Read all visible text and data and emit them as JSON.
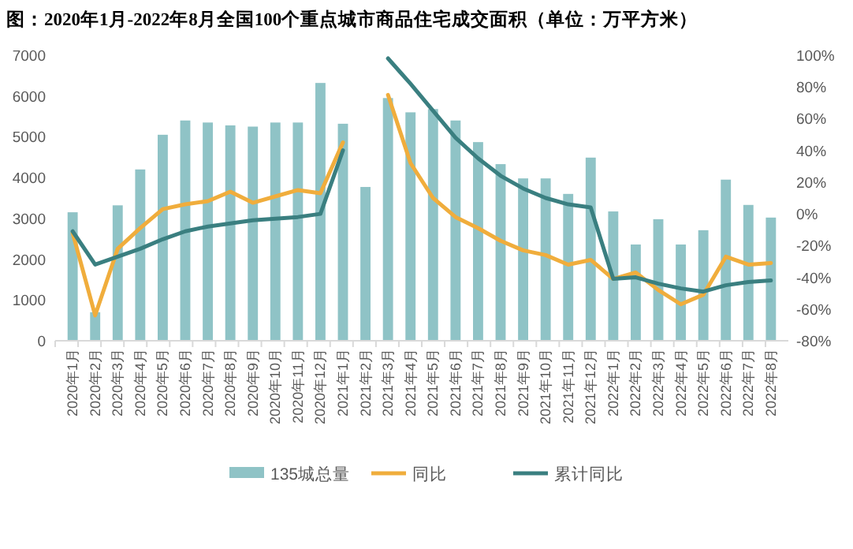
{
  "chart_data": {
    "type": "bar",
    "title": "图：2020年1月-2022年8月全国100个重点城市商品住宅成交面积（单位：万平方米）",
    "categories": [
      "2020年1月",
      "2020年2月",
      "2020年3月",
      "2020年4月",
      "2020年5月",
      "2020年6月",
      "2020年7月",
      "2020年8月",
      "2020年9月",
      "2020年10月",
      "2020年11月",
      "2020年12月",
      "2021年1月",
      "2021年2月",
      "2021年3月",
      "2021年4月",
      "2021年5月",
      "2021年6月",
      "2021年7月",
      "2021年8月",
      "2021年9月",
      "2021年10月",
      "2021年11月",
      "2021年12月",
      "2022年1月",
      "2022年2月",
      "2022年3月",
      "2022年4月",
      "2022年5月",
      "2022年6月",
      "2022年7月",
      "2022年8月"
    ],
    "series": [
      {
        "name": "135城总量",
        "color": "#8fc3c6",
        "values": [
          3150,
          700,
          3320,
          4200,
          5050,
          5400,
          5350,
          5280,
          5250,
          5350,
          5350,
          6320,
          5320,
          3770,
          5950,
          5600,
          5680,
          5400,
          4870,
          4330,
          3980,
          3980,
          3600,
          4490,
          3170,
          2360,
          2980,
          2360,
          2710,
          3950,
          3330,
          3020
        ]
      },
      {
        "name": "同比",
        "type": "line",
        "axis": "y2",
        "color": "#f0ad3c",
        "values": [
          -12,
          -64,
          -22,
          -9,
          3,
          6,
          8,
          14,
          7,
          11,
          15,
          13,
          45,
          null,
          75,
          32,
          10,
          -2,
          -9,
          -17,
          -23,
          -26,
          -32,
          -29,
          -41,
          -37,
          -48,
          -57,
          -51,
          -27,
          -32,
          -31
        ]
      },
      {
        "name": "累计同比",
        "type": "line",
        "axis": "y2",
        "color": "#3a7f80",
        "values": [
          -11,
          -32,
          -27,
          -22,
          -16,
          -11,
          -8,
          -6,
          -4,
          -3,
          -2,
          0,
          40,
          null,
          98,
          82,
          65,
          48,
          35,
          24,
          16,
          10,
          6,
          4,
          -41,
          -40,
          -44,
          -47,
          -49,
          -45,
          -43,
          -42
        ]
      }
    ],
    "ylim": [
      0,
      7000
    ],
    "yticks": [
      0,
      1000,
      2000,
      3000,
      4000,
      5000,
      6000,
      7000
    ],
    "y2lim": [
      -80,
      100
    ],
    "y2ticks": [
      {
        "value": -80,
        "label": "-80%"
      },
      {
        "value": -60,
        "label": "-60%"
      },
      {
        "value": -40,
        "label": "-40%"
      },
      {
        "value": -20,
        "label": "-20%"
      },
      {
        "value": 0,
        "label": "0%"
      },
      {
        "value": 20,
        "label": "20%"
      },
      {
        "value": 40,
        "label": "40%"
      },
      {
        "value": 60,
        "label": "60%"
      },
      {
        "value": 80,
        "label": "80%"
      },
      {
        "value": 100,
        "label": "100%"
      }
    ],
    "legend": "bottom"
  }
}
